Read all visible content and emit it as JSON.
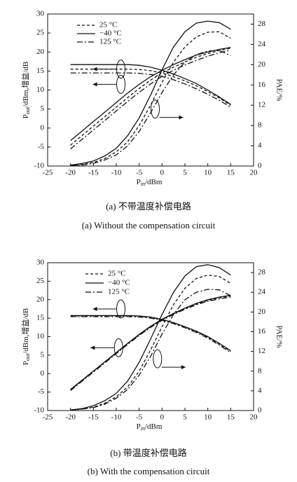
{
  "chart_data": [
    {
      "type": "line",
      "captions": [
        "(a) 不带温度补偿电路",
        "(a) Without the compensation circuit"
      ],
      "xlabel": [
        "P",
        "in",
        "/dBm"
      ],
      "ylabel": [
        "P",
        "out",
        "/dBm,增益/dB"
      ],
      "y2label": "PAE/%",
      "xlim": [
        -25,
        20
      ],
      "xticks": [
        -25,
        -20,
        -15,
        -10,
        -5,
        0,
        5,
        10,
        15,
        20
      ],
      "ylim": [
        -10,
        30
      ],
      "yticks": [
        -10,
        -5,
        0,
        5,
        10,
        15,
        20,
        25,
        30
      ],
      "y2lim": [
        0,
        30
      ],
      "y2ticks": [
        0,
        4,
        8,
        12,
        16,
        20,
        24,
        28
      ],
      "x": [
        -20,
        -17.5,
        -15,
        -12.5,
        -10,
        -7.5,
        -5,
        -2.5,
        0,
        2.5,
        5,
        7.5,
        10,
        12.5,
        15
      ],
      "series": [
        {
          "name": "25 °C",
          "style": "dashed",
          "color": "#111111",
          "values": [
            -4.5,
            -2,
            0.5,
            3,
            5.5,
            8,
            10.4,
            12.6,
            14.5,
            16,
            17.4,
            18.6,
            19.6,
            20.4,
            21
          ],
          "gain": [
            15.5,
            15.5,
            15.5,
            15.5,
            15.5,
            15.5,
            15.4,
            15.1,
            14.5,
            13.5,
            12.4,
            11.1,
            9.6,
            7.9,
            6
          ],
          "pae": [
            0.1,
            0.3,
            0.7,
            1.5,
            2.8,
            4.8,
            8,
            12,
            16.5,
            20.5,
            23.5,
            25.5,
            26.4,
            26.5,
            25.2
          ]
        },
        {
          "name": "−40 °C",
          "style": "solid",
          "color": "#111111",
          "values": [
            -3.3,
            -0.8,
            1.7,
            4.2,
            6.7,
            9.2,
            11.5,
            13.5,
            15.2,
            16.7,
            18,
            19.2,
            20,
            20.7,
            21.2
          ],
          "gain": [
            16.7,
            16.7,
            16.7,
            16.7,
            16.7,
            16.7,
            16.5,
            16,
            15.2,
            14.2,
            13,
            11.7,
            10,
            8.2,
            6.2
          ],
          "pae": [
            0.2,
            0.5,
            1,
            2,
            3.5,
            6,
            9.5,
            14,
            19,
            23.5,
            26.5,
            28.2,
            28.6,
            28.3,
            27
          ]
        },
        {
          "name": "125 °C",
          "style": "dashdot",
          "color": "#111111",
          "values": [
            -5.5,
            -3,
            -0.5,
            2,
            4.5,
            7,
            9.4,
            11.6,
            13.6,
            15.2,
            16.6,
            17.8,
            18.9,
            19.8,
            20.5
          ],
          "gain": [
            14.5,
            14.5,
            14.5,
            14.5,
            14.5,
            14.5,
            14.4,
            14.1,
            13.6,
            12.7,
            11.6,
            10.3,
            8.9,
            7.3,
            5.5
          ],
          "pae": [
            0.1,
            0.2,
            0.5,
            1.2,
            2.2,
            4,
            6.8,
            10.5,
            14.5,
            18,
            20.5,
            22,
            22.7,
            22.8,
            21.8
          ]
        }
      ]
    },
    {
      "type": "line",
      "captions": [
        "(b) 带温度补偿电路",
        "(b) With the compensation circuit"
      ],
      "xlabel": [
        "P",
        "in",
        "/dBm"
      ],
      "ylabel": [
        "P",
        "out",
        "/dBm,增益/dB"
      ],
      "y2label": "PAE/%",
      "xlim": [
        -25,
        20
      ],
      "xticks": [
        -25,
        -20,
        -15,
        -10,
        -5,
        0,
        5,
        10,
        15,
        20
      ],
      "ylim": [
        -10,
        30
      ],
      "yticks": [
        -10,
        -5,
        0,
        5,
        10,
        15,
        20,
        25,
        30
      ],
      "y2lim": [
        0,
        30
      ],
      "y2ticks": [
        0,
        4,
        8,
        12,
        16,
        20,
        24,
        28
      ],
      "x": [
        -20,
        -17.5,
        -15,
        -12.5,
        -10,
        -7.5,
        -5,
        -2.5,
        0,
        2.5,
        5,
        7.5,
        10,
        12.5,
        15
      ],
      "series": [
        {
          "name": "25 °C",
          "style": "dashed",
          "color": "#111111",
          "values": [
            -4.4,
            -1.9,
            0.6,
            3.1,
            5.6,
            8.1,
            10.5,
            12.7,
            14.6,
            16.2,
            17.6,
            18.8,
            19.8,
            20.5,
            21
          ],
          "gain": [
            15.6,
            15.6,
            15.6,
            15.6,
            15.6,
            15.6,
            15.5,
            15.2,
            14.6,
            13.7,
            12.6,
            11.3,
            9.8,
            8,
            6
          ],
          "pae": [
            0.1,
            0.3,
            0.7,
            1.5,
            2.8,
            4.8,
            8,
            12.3,
            17,
            21.5,
            24.8,
            26.8,
            27.5,
            27.2,
            25.8
          ]
        },
        {
          "name": "−40 °C",
          "style": "solid",
          "color": "#111111",
          "values": [
            -4.3,
            -1.8,
            0.7,
            3.2,
            5.7,
            8.2,
            10.6,
            12.8,
            14.7,
            16.3,
            17.7,
            19,
            20,
            20.7,
            21.2
          ],
          "gain": [
            15.7,
            15.7,
            15.7,
            15.7,
            15.7,
            15.7,
            15.6,
            15.3,
            14.7,
            13.8,
            12.7,
            11.5,
            10,
            8.2,
            6.2
          ],
          "pae": [
            0.1,
            0.4,
            1,
            2,
            3.5,
            6,
            9.8,
            14.5,
            19.5,
            24,
            27.3,
            29.2,
            29.6,
            29,
            27.5
          ]
        },
        {
          "name": "125 °C",
          "style": "dashdot",
          "color": "#111111",
          "values": [
            -4.6,
            -2.1,
            0.4,
            2.9,
            5.4,
            7.9,
            10.3,
            12.5,
            14.4,
            16,
            17.4,
            18.6,
            19.6,
            20.2,
            20.7
          ],
          "gain": [
            15.4,
            15.4,
            15.4,
            15.4,
            15.4,
            15.4,
            15.3,
            15,
            14.4,
            13.5,
            12.4,
            11.1,
            9.6,
            7.7,
            5.7
          ],
          "pae": [
            0.1,
            0.3,
            0.6,
            1.3,
            2.5,
            4.3,
            7.2,
            11,
            15.5,
            19.5,
            22.5,
            24,
            24.6,
            24.5,
            23.3
          ]
        }
      ]
    }
  ]
}
